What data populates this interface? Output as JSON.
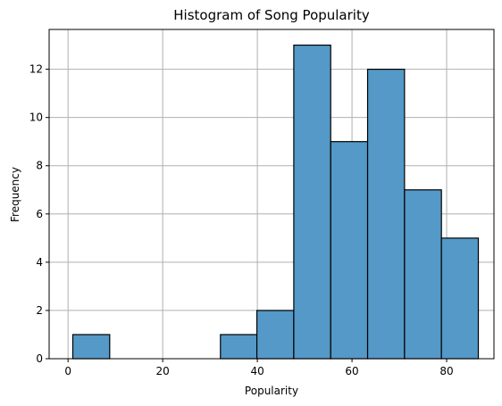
{
  "chart_data": {
    "type": "bar",
    "title": "Histogram of Song Popularity",
    "xlabel": "Popularity",
    "ylabel": "Frequency",
    "xlim": [
      -4,
      90
    ],
    "ylim": [
      0,
      13.65
    ],
    "grid": true,
    "bins": [
      {
        "start": 1,
        "end": 8.8,
        "count": 1
      },
      {
        "start": 8.8,
        "end": 16.6,
        "count": 0
      },
      {
        "start": 16.6,
        "end": 24.4,
        "count": 0
      },
      {
        "start": 24.4,
        "end": 32.2,
        "count": 0
      },
      {
        "start": 32.2,
        "end": 39.9,
        "count": 1
      },
      {
        "start": 39.9,
        "end": 47.7,
        "count": 2
      },
      {
        "start": 47.7,
        "end": 55.5,
        "count": 13
      },
      {
        "start": 55.5,
        "end": 63.3,
        "count": 9
      },
      {
        "start": 63.3,
        "end": 71.1,
        "count": 12
      },
      {
        "start": 71.1,
        "end": 78.9,
        "count": 7
      },
      {
        "start": 78.9,
        "end": 86.7,
        "count": 5
      }
    ],
    "x_ticks": [
      0,
      20,
      40,
      60,
      80
    ],
    "y_ticks": [
      0,
      2,
      4,
      6,
      8,
      10,
      12
    ],
    "bar_color": "#5499c7",
    "edge_color": "#000000"
  }
}
